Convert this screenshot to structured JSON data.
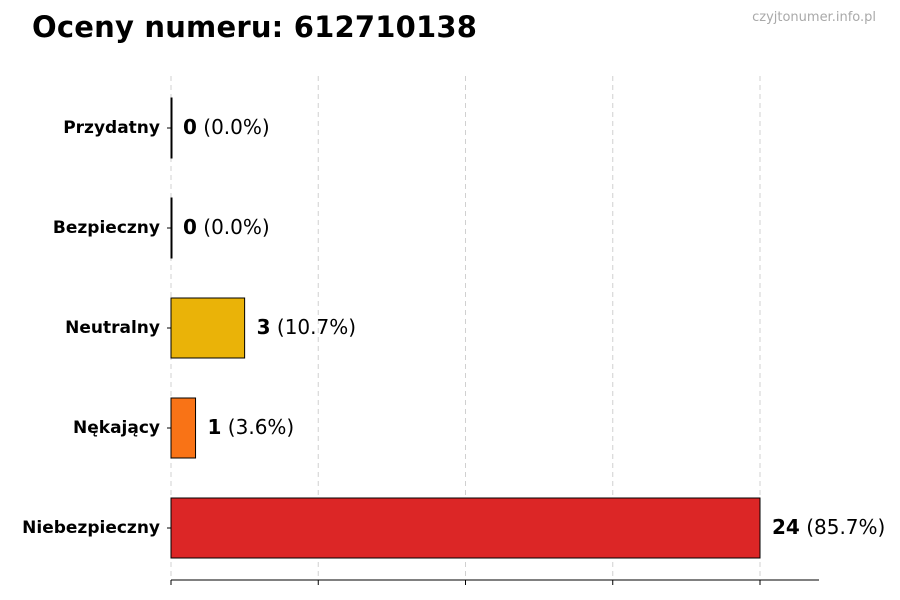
{
  "title": "Oceny numeru: 612710138",
  "watermark": "czyjtonumer.info.pl",
  "chart_data": {
    "type": "bar",
    "orientation": "horizontal",
    "title": "Oceny numeru: 612710138",
    "xlabel": "",
    "ylabel": "",
    "xlim": [
      0,
      24
    ],
    "grid": "vertical dashed",
    "categories": [
      "Przydatny",
      "Bezpieczny",
      "Neutralny",
      "Nękający",
      "Niebezpieczny"
    ],
    "values": [
      0,
      0,
      3,
      1,
      24
    ],
    "value_labels": [
      "(0.0%)",
      "(0.0%)",
      "(10.7%)",
      "(3.6%)",
      "(85.7%)"
    ],
    "colors": [
      "#1f9d55",
      "#3b82f6",
      "#eab308",
      "#f97316",
      "#dc2626"
    ]
  }
}
